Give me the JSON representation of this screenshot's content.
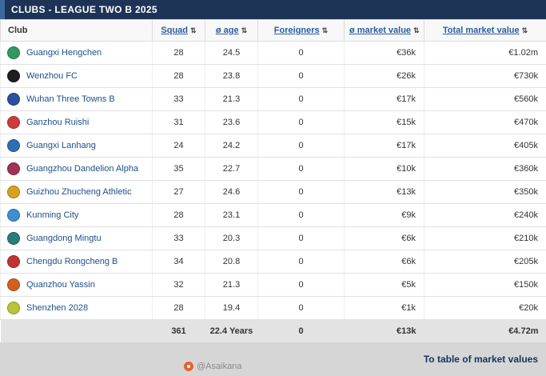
{
  "header": {
    "title": "CLUBS - LEAGUE TWO B 2025"
  },
  "icons": {
    "sort": "⇅"
  },
  "table": {
    "club_column_label": "Club",
    "columns": [
      {
        "label": "Squad"
      },
      {
        "label": "ø age"
      },
      {
        "label": "Foreigners"
      },
      {
        "label": "ø market value"
      },
      {
        "label": "Total market value"
      }
    ],
    "rows": [
      {
        "club": "Guangxi Hengchen",
        "badge_color": "#2f9a5d",
        "squad": "28",
        "avg_age": "24.5",
        "foreigners": "0",
        "avg_market_value": "€36k",
        "total_market_value": "€1.02m"
      },
      {
        "club": "Wenzhou FC",
        "badge_color": "#1e1e1e",
        "squad": "28",
        "avg_age": "23.8",
        "foreigners": "0",
        "avg_market_value": "€26k",
        "total_market_value": "€730k"
      },
      {
        "club": "Wuhan Three Towns B",
        "badge_color": "#2c4f9e",
        "squad": "33",
        "avg_age": "21.3",
        "foreigners": "0",
        "avg_market_value": "€17k",
        "total_market_value": "€560k"
      },
      {
        "club": "Ganzhou Ruishi",
        "badge_color": "#cf3b3b",
        "squad": "31",
        "avg_age": "23.6",
        "foreigners": "0",
        "avg_market_value": "€15k",
        "total_market_value": "€470k"
      },
      {
        "club": "Guangxi Lanhang",
        "badge_color": "#2e6fb2",
        "squad": "24",
        "avg_age": "24.2",
        "foreigners": "0",
        "avg_market_value": "€17k",
        "total_market_value": "€405k"
      },
      {
        "club": "Guangzhou Dandelion Alpha",
        "badge_color": "#9e3352",
        "squad": "35",
        "avg_age": "22.7",
        "foreigners": "0",
        "avg_market_value": "€10k",
        "total_market_value": "€360k"
      },
      {
        "club": "Guizhou Zhucheng Athletic",
        "badge_color": "#d9a21d",
        "squad": "27",
        "avg_age": "24.6",
        "foreigners": "0",
        "avg_market_value": "€13k",
        "total_market_value": "€350k"
      },
      {
        "club": "Kunming City",
        "badge_color": "#3e8fd1",
        "squad": "28",
        "avg_age": "23.1",
        "foreigners": "0",
        "avg_market_value": "€9k",
        "total_market_value": "€240k"
      },
      {
        "club": "Guangdong Mingtu",
        "badge_color": "#2a7d78",
        "squad": "33",
        "avg_age": "20.3",
        "foreigners": "0",
        "avg_market_value": "€6k",
        "total_market_value": "€210k"
      },
      {
        "club": "Chengdu Rongcheng B",
        "badge_color": "#c23434",
        "squad": "34",
        "avg_age": "20.8",
        "foreigners": "0",
        "avg_market_value": "€6k",
        "total_market_value": "€205k"
      },
      {
        "club": "Quanzhou Yassin",
        "badge_color": "#d4601f",
        "squad": "32",
        "avg_age": "21.3",
        "foreigners": "0",
        "avg_market_value": "€5k",
        "total_market_value": "€150k"
      },
      {
        "club": "Shenzhen 2028",
        "badge_color": "#b9c437",
        "squad": "28",
        "avg_age": "19.4",
        "foreigners": "0",
        "avg_market_value": "€1k",
        "total_market_value": "€20k"
      }
    ],
    "totals": {
      "squad": "361",
      "avg_age": "22.4 Years",
      "foreigners": "0",
      "avg_market_value": "€13k",
      "total_market_value": "€4.72m"
    }
  },
  "footer": {
    "watermark": "@Asaikana",
    "link_label": "To table of market values"
  }
}
